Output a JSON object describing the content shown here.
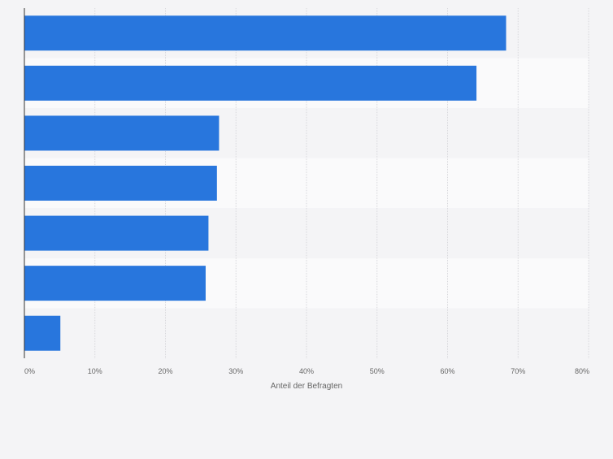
{
  "chart_data": {
    "type": "bar",
    "orientation": "horizontal",
    "categories": [
      "",
      "",
      "",
      "",
      "",
      "",
      ""
    ],
    "values": [
      68.3,
      64.1,
      27.6,
      27.3,
      26.1,
      25.7,
      5.1
    ],
    "xlabel": "Anteil der Befragten",
    "xlim": [
      0,
      80
    ],
    "x_ticks": [
      0,
      10,
      20,
      30,
      40,
      50,
      60,
      70,
      80
    ],
    "x_tick_labels": [
      "0%",
      "10%",
      "20%",
      "30%",
      "40%",
      "50%",
      "60%",
      "70%",
      "80%"
    ],
    "grid": true,
    "bar_color": "#2876dd",
    "band_colors": [
      "#f4f4f6",
      "#fafafb"
    ]
  }
}
